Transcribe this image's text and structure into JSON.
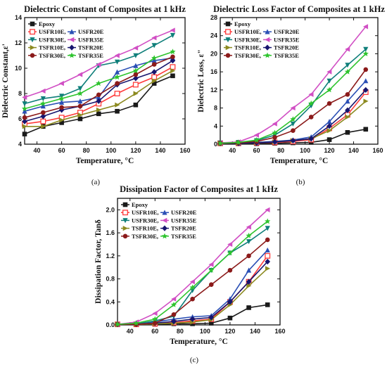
{
  "figure": {
    "captions": [
      "(a)",
      "(b)",
      "(c)"
    ]
  },
  "series_style": [
    {
      "name": "Epoxy",
      "color": "#1a1a1a",
      "marker": "square"
    },
    {
      "name": "USFR10E",
      "color": "#ff3b3b",
      "marker": "square-open"
    },
    {
      "name": "USFR20E",
      "color": "#2a4fb5",
      "marker": "triangle"
    },
    {
      "name": "USFR30E",
      "color": "#0f7f7a",
      "marker": "triangle-down"
    },
    {
      "name": "USFR35E",
      "color": "#d14fc4",
      "marker": "triangle-left"
    },
    {
      "name": "TSFR10E",
      "color": "#8c8a20",
      "marker": "triangle-right"
    },
    {
      "name": "TSFR20E",
      "color": "#17156e",
      "marker": "diamond"
    },
    {
      "name": "TSFR30E",
      "color": "#8b1a1a",
      "marker": "circle"
    },
    {
      "name": "TSFR35E",
      "color": "#2ec42e",
      "marker": "star"
    }
  ],
  "chart_data": [
    {
      "type": "line",
      "title": "Dielectric Constant of  Composites at 1 kHz",
      "xlabel": "Temperature, °C",
      "ylabel": "Dielectric Constant,ε'",
      "xlim": [
        30,
        160
      ],
      "ylim": [
        4,
        14
      ],
      "xticks": [
        40,
        60,
        80,
        100,
        120,
        140,
        160
      ],
      "yticks": [
        4,
        6,
        8,
        10,
        12,
        14
      ],
      "legend": "top-left",
      "x": [
        30,
        45,
        60,
        75,
        90,
        105,
        120,
        135,
        150
      ],
      "series": [
        {
          "name": "Epoxy",
          "values": [
            4.8,
            5.4,
            5.7,
            6.0,
            6.4,
            6.6,
            7.1,
            8.8,
            9.4
          ]
        },
        {
          "name": "USFR10E",
          "values": [
            5.6,
            5.8,
            6.1,
            6.5,
            7.2,
            8.0,
            8.7,
            9.3,
            10.1
          ]
        },
        {
          "name": "USFR20E",
          "values": [
            6.6,
            7.0,
            7.3,
            7.4,
            7.7,
            9.7,
            10.2,
            10.6,
            10.8
          ]
        },
        {
          "name": "USFR30E",
          "values": [
            7.2,
            7.6,
            7.8,
            8.4,
            10.2,
            10.5,
            11.0,
            11.8,
            12.6
          ]
        },
        {
          "name": "USFR35E",
          "values": [
            7.7,
            8.2,
            8.8,
            9.5,
            10.3,
            11.0,
            11.6,
            12.4,
            13.0
          ]
        },
        {
          "name": "TSFR10E",
          "values": [
            5.4,
            5.4,
            5.9,
            6.3,
            6.7,
            7.1,
            8.0,
            9.0,
            9.8
          ]
        },
        {
          "name": "TSFR20E",
          "values": [
            5.8,
            6.2,
            6.7,
            7.0,
            7.4,
            8.7,
            9.2,
            9.7,
            10.6
          ]
        },
        {
          "name": "TSFR30E",
          "values": [
            6.1,
            6.5,
            6.9,
            7.0,
            7.9,
            8.8,
            9.5,
            10.3,
            10.9
          ]
        },
        {
          "name": "TSFR35E",
          "values": [
            6.8,
            7.2,
            7.6,
            8.0,
            8.8,
            9.3,
            9.8,
            10.8,
            11.3
          ]
        }
      ]
    },
    {
      "type": "line",
      "title": "Dielectric Loss Factor of Composites at 1 kHz",
      "xlabel": "Temperature, °C",
      "ylabel": "Dielectric Loss, ε\"",
      "xlim": [
        30,
        160
      ],
      "ylim": [
        0,
        28
      ],
      "xticks": [
        40,
        60,
        80,
        100,
        120,
        140,
        160
      ],
      "yticks": [
        0,
        4,
        8,
        12,
        16,
        20,
        24,
        28
      ],
      "legend": "top-left",
      "x": [
        30,
        45,
        60,
        75,
        90,
        105,
        120,
        135,
        150
      ],
      "series": [
        {
          "name": "Epoxy",
          "values": [
            0.1,
            0.1,
            0.1,
            0.2,
            0.3,
            0.4,
            1.0,
            2.6,
            3.3
          ]
        },
        {
          "name": "USFR10E",
          "values": [
            0.2,
            0.2,
            0.3,
            0.4,
            0.6,
            1.0,
            3.5,
            6.5,
            11.5
          ]
        },
        {
          "name": "USFR20E",
          "values": [
            0.2,
            0.2,
            0.4,
            0.6,
            0.9,
            1.6,
            5.0,
            9.5,
            14.0
          ]
        },
        {
          "name": "USFR30E",
          "values": [
            0.3,
            0.4,
            0.8,
            2.0,
            4.5,
            8.5,
            14.0,
            17.5,
            21.0
          ]
        },
        {
          "name": "USFR35E",
          "values": [
            0.3,
            0.5,
            2.0,
            4.5,
            8.0,
            11.0,
            16.0,
            21.0,
            26.0
          ]
        },
        {
          "name": "TSFR10E",
          "values": [
            0.2,
            0.2,
            0.3,
            0.5,
            0.8,
            1.2,
            3.0,
            6.0,
            9.5
          ]
        },
        {
          "name": "TSFR20E",
          "values": [
            0.2,
            0.2,
            0.3,
            0.5,
            0.8,
            1.2,
            4.0,
            7.5,
            12.0
          ]
        },
        {
          "name": "TSFR30E",
          "values": [
            0.2,
            0.3,
            0.6,
            1.5,
            3.0,
            6.0,
            9.0,
            11.0,
            16.5
          ]
        },
        {
          "name": "TSFR35E",
          "values": [
            0.2,
            0.4,
            0.9,
            2.5,
            5.5,
            9.0,
            12.0,
            16.0,
            20.0
          ]
        }
      ]
    },
    {
      "type": "line",
      "title": "Dissipation Factor of Composites at 1 kHz",
      "xlabel": "Temperature, °C",
      "ylabel": "Dissipation Factor, Tanδ",
      "xlim": [
        30,
        160
      ],
      "ylim": [
        0,
        2.2
      ],
      "xticks": [
        40,
        60,
        80,
        100,
        120,
        140,
        160
      ],
      "yticks": [
        0.0,
        0.4,
        0.8,
        1.2,
        1.6,
        2.0
      ],
      "legend": "top-left",
      "x": [
        30,
        45,
        60,
        75,
        90,
        105,
        120,
        135,
        150
      ],
      "series": [
        {
          "name": "Epoxy",
          "values": [
            0.01,
            0.01,
            0.01,
            0.02,
            0.02,
            0.03,
            0.12,
            0.3,
            0.35
          ]
        },
        {
          "name": "USFR10E",
          "values": [
            0.01,
            0.01,
            0.02,
            0.04,
            0.07,
            0.1,
            0.4,
            0.75,
            1.2
          ]
        },
        {
          "name": "USFR20E",
          "values": [
            0.01,
            0.02,
            0.05,
            0.1,
            0.14,
            0.16,
            0.45,
            0.95,
            1.3
          ]
        },
        {
          "name": "USFR30E",
          "values": [
            0.01,
            0.02,
            0.07,
            0.15,
            0.6,
            0.95,
            1.25,
            1.45,
            1.68
          ]
        },
        {
          "name": "USFR35E",
          "values": [
            0.01,
            0.05,
            0.2,
            0.45,
            0.75,
            1.05,
            1.4,
            1.7,
            2.0
          ]
        },
        {
          "name": "TSFR10E",
          "values": [
            0.01,
            0.01,
            0.02,
            0.03,
            0.05,
            0.09,
            0.35,
            0.68,
            0.98
          ]
        },
        {
          "name": "TSFR20E",
          "values": [
            0.01,
            0.01,
            0.03,
            0.06,
            0.1,
            0.13,
            0.4,
            0.75,
            1.1
          ]
        },
        {
          "name": "TSFR30E",
          "values": [
            0.01,
            0.01,
            0.03,
            0.18,
            0.45,
            0.7,
            0.95,
            1.2,
            1.48
          ]
        },
        {
          "name": "TSFR35E",
          "values": [
            0.01,
            0.03,
            0.1,
            0.35,
            0.65,
            0.95,
            1.25,
            1.55,
            1.8
          ]
        }
      ]
    }
  ]
}
